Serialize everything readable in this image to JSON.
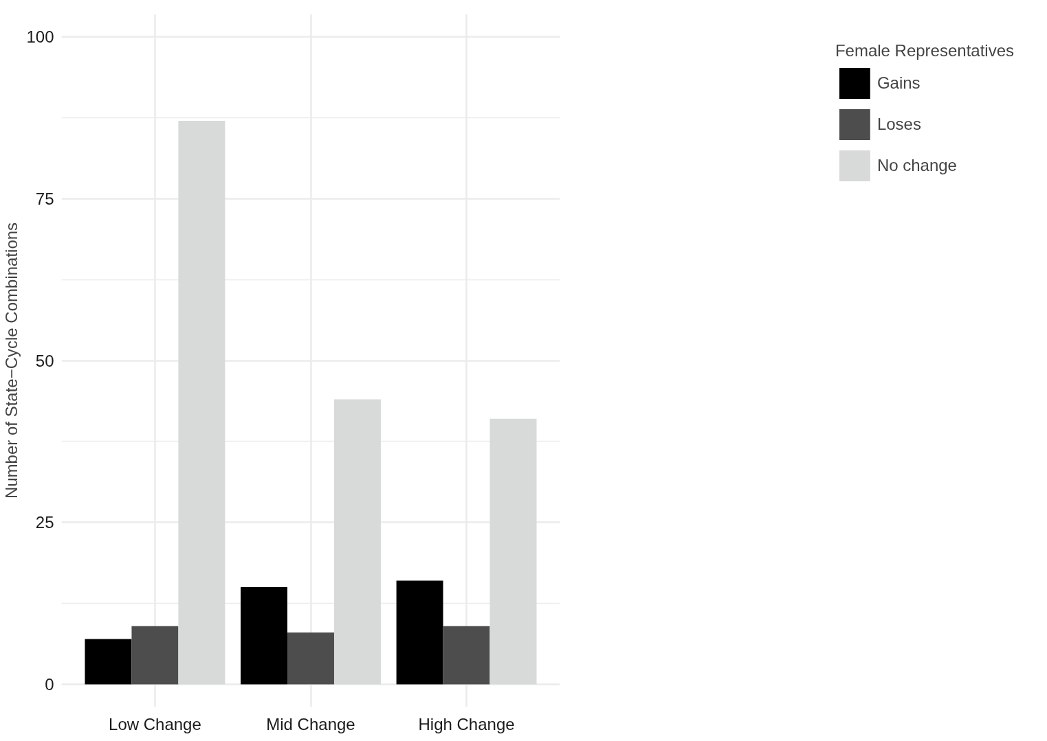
{
  "chart_data": {
    "type": "bar",
    "categories": [
      "Low Change",
      "Mid Change",
      "High Change"
    ],
    "series": [
      {
        "name": "Gains",
        "color": "#000000",
        "values": [
          7,
          15,
          16
        ]
      },
      {
        "name": "Loses",
        "color": "#4d4d4d",
        "values": [
          9,
          8,
          9
        ]
      },
      {
        "name": "No change",
        "color": "#d8d9d9",
        "values": [
          87,
          44,
          41
        ]
      }
    ],
    "ylabel": "Number of State−Cycle Combinations",
    "legend_title": "Female Representatives",
    "ylim": [
      -3.5,
      103.5
    ],
    "yticks": [
      0,
      25,
      50,
      75,
      100
    ],
    "grid": true,
    "legend": "right"
  }
}
